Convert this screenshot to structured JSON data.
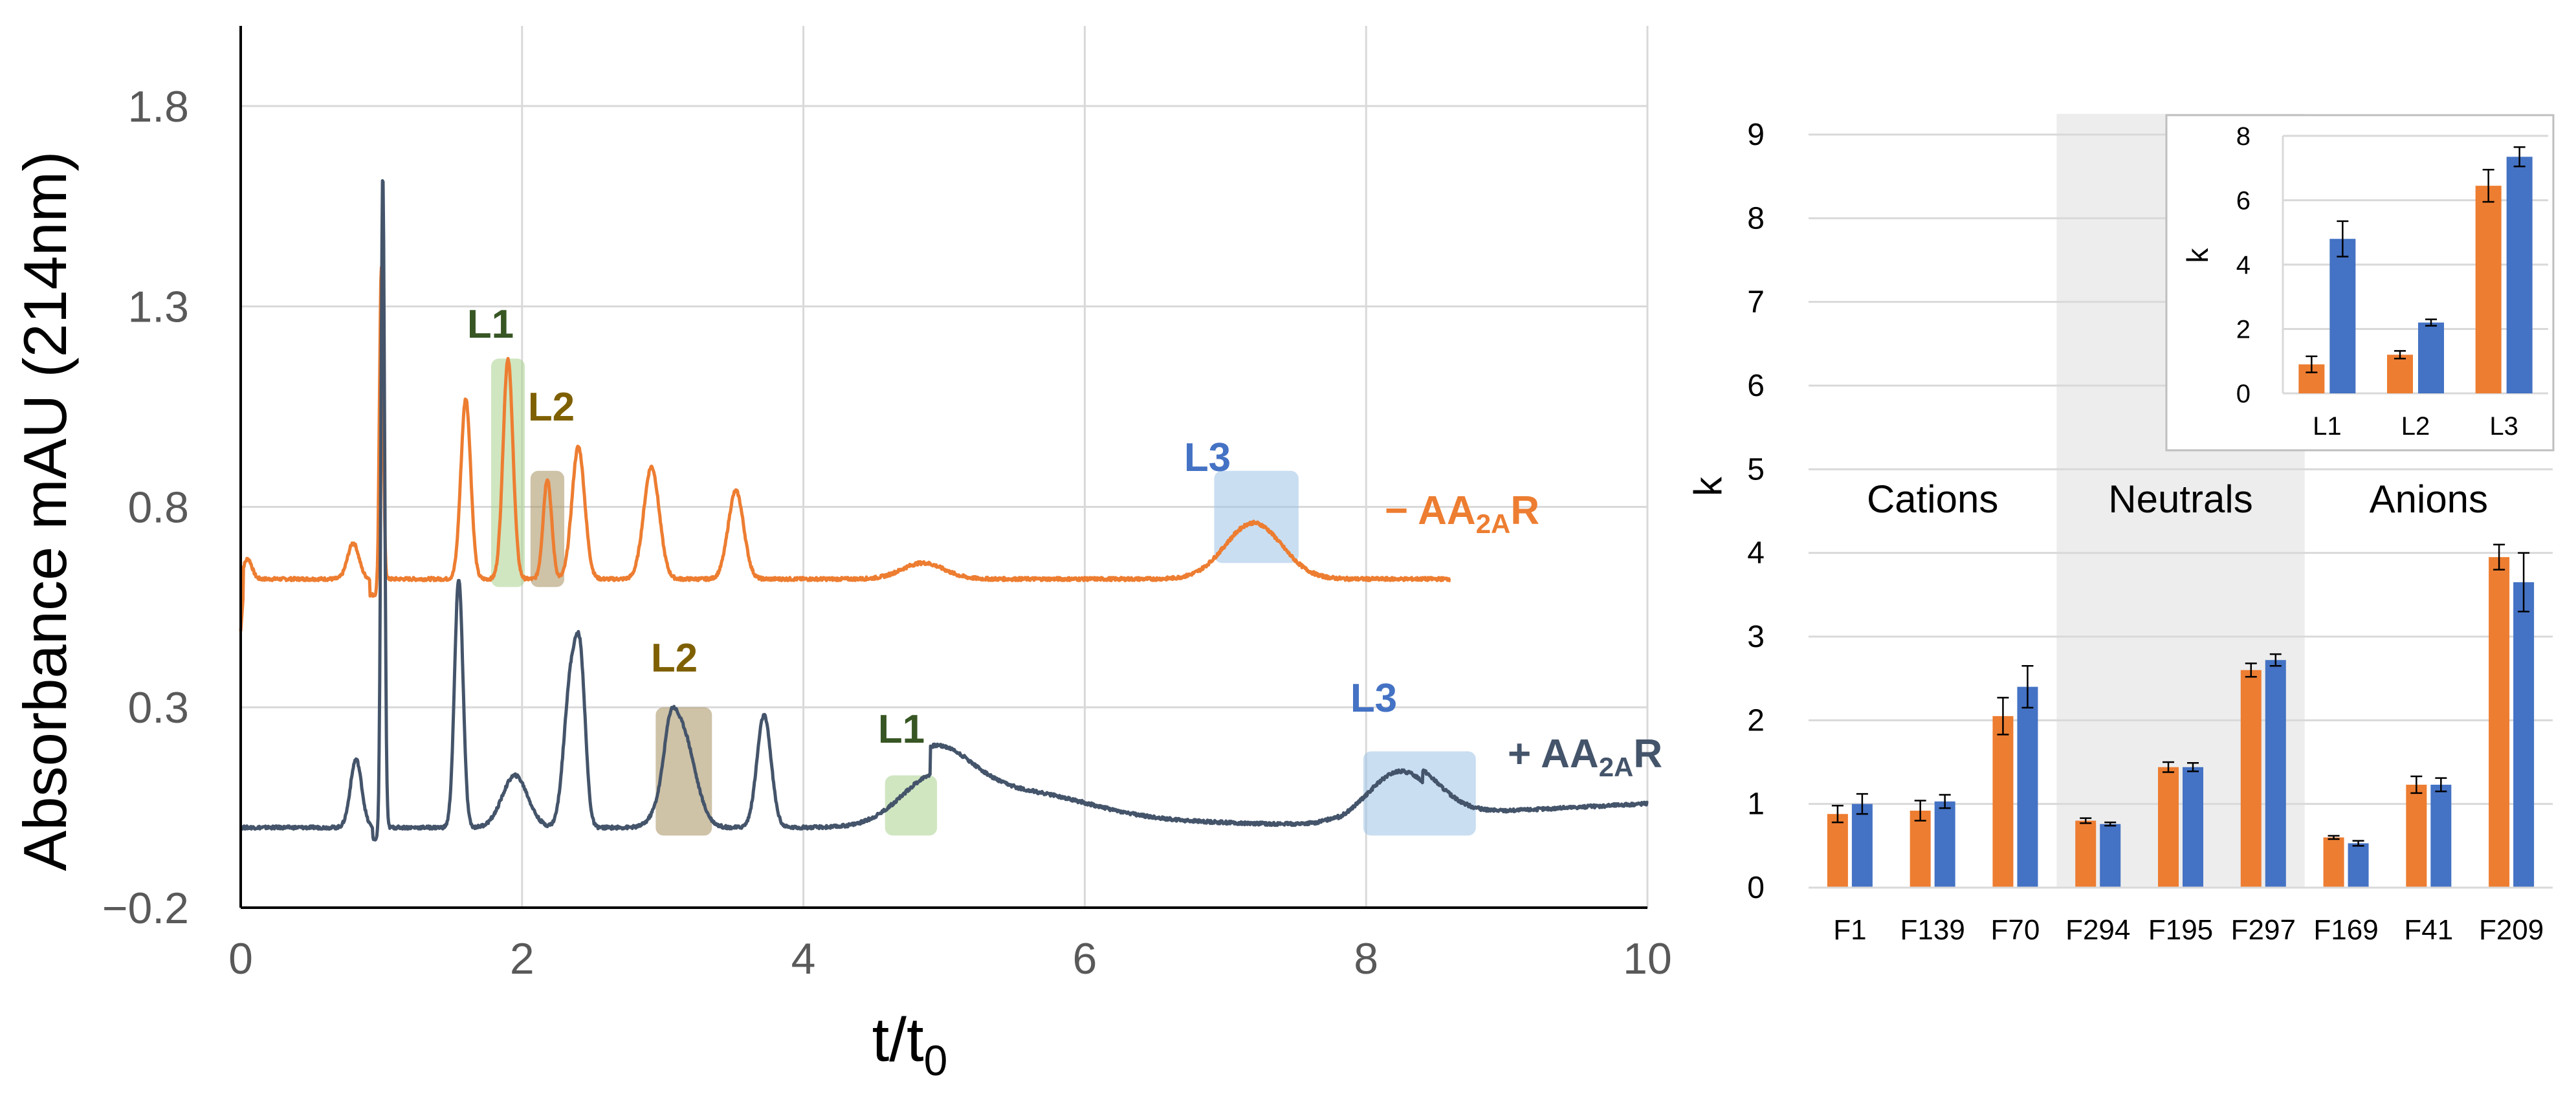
{
  "chart_data": [
    {
      "type": "line",
      "xlabel": "t/t",
      "xlabel_sub": "0",
      "ylabel": "Absorbance mAU (214nm)",
      "xlim": [
        0,
        10
      ],
      "ylim": [
        -0.2,
        2.0
      ],
      "x_ticks": [
        0,
        2,
        4,
        6,
        8,
        10
      ],
      "x_tick_labels": [
        "0",
        "2",
        "4",
        "6",
        "8",
        "10"
      ],
      "y_ticks": [
        -0.2,
        0.3,
        0.8,
        1.3,
        1.8
      ],
      "y_tick_labels": [
        "−0.2",
        "0.3",
        "0.8",
        "1.3",
        "1.8"
      ],
      "grid": true,
      "series": [
        {
          "name": "− AA",
          "name_sub": "2A",
          "name_end": "R",
          "color": "#ED7D31",
          "baseline": 0.62,
          "x_end": 8.6,
          "peaks": [
            {
              "x": 0.05,
              "h": 0.05,
              "w": 0.03
            },
            {
              "x": 0.8,
              "h": 0.09,
              "w": 0.04
            },
            {
              "x": 1.0,
              "h": 0.78,
              "w": 0.013
            },
            {
              "x": 1.6,
              "h": 0.45,
              "w": 0.035
            },
            {
              "x": 1.9,
              "h": 0.55,
              "w": 0.035
            },
            {
              "x": 2.18,
              "h": 0.25,
              "w": 0.03
            },
            {
              "x": 2.4,
              "h": 0.33,
              "w": 0.045
            },
            {
              "x": 2.92,
              "h": 0.28,
              "w": 0.055
            },
            {
              "x": 3.52,
              "h": 0.22,
              "w": 0.055
            },
            {
              "x": 4.85,
              "h": 0.04,
              "w": 0.15
            },
            {
              "x": 7.2,
              "h": 0.14,
              "w": 0.2
            }
          ]
        },
        {
          "name": "+ AA",
          "name_sub": "2A",
          "name_end": "R",
          "color": "#44546A",
          "baseline": 0.0,
          "x_end": 10.0,
          "peaks": [
            {
              "x": 0.82,
              "h": 0.17,
              "w": 0.04
            },
            {
              "x": 1.01,
              "h": 1.63,
              "w": 0.013
            },
            {
              "x": 1.55,
              "h": 0.62,
              "w": 0.03
            },
            {
              "x": 1.95,
              "h": 0.13,
              "w": 0.09
            },
            {
              "x": 2.35,
              "h": 0.38,
              "w": 0.05
            },
            {
              "x": 2.42,
              "h": 0.3,
              "w": 0.035
            },
            {
              "x": 3.12,
              "h": 0.26,
              "w": 0.1
            },
            {
              "x": 3.05,
              "h": 0.08,
              "w": 0.04
            },
            {
              "x": 3.72,
              "h": 0.28,
              "w": 0.05
            },
            {
              "x": 4.95,
              "h": 0.12,
              "w": 0.25
            },
            {
              "x": 5.6,
              "h": 0.05,
              "w": 0.45
            },
            {
              "x": 8.25,
              "h": 0.14,
              "w": 0.24
            }
          ],
          "tail_levels": [
            [
              7.8,
              0.03
            ],
            [
              10.0,
              0.06
            ]
          ]
        }
      ],
      "highlights": [
        {
          "label": "L1",
          "x0": 1.78,
          "x1": 2.02,
          "y0": 0.6,
          "y1": 1.17,
          "fill": "#A9D18E",
          "text_color": "#375623"
        },
        {
          "label": "L2",
          "x0": 2.06,
          "x1": 2.3,
          "y0": 0.6,
          "y1": 0.89,
          "fill": "#A68F5F",
          "text_color": "#7F6000"
        },
        {
          "label": "L3",
          "x0": 6.92,
          "x1": 7.52,
          "y0": 0.66,
          "y1": 0.89,
          "fill": "#9DC3E6",
          "text_color": "#4472C4"
        },
        {
          "label": "L2",
          "x0": 2.95,
          "x1": 3.35,
          "y0": -0.02,
          "y1": 0.3,
          "fill": "#A68F5F",
          "text_color": "#7F6000"
        },
        {
          "label": "L1",
          "x0": 4.58,
          "x1": 4.95,
          "y0": -0.02,
          "y1": 0.13,
          "fill": "#A9D18E",
          "text_color": "#375623"
        },
        {
          "label": "L3",
          "x0": 7.98,
          "x1": 8.78,
          "y0": -0.02,
          "y1": 0.19,
          "fill": "#9DC3E6",
          "text_color": "#4472C4"
        }
      ]
    },
    {
      "type": "bar",
      "ylabel": "k",
      "ylim": [
        0,
        9
      ],
      "y_ticks": [
        0,
        1,
        2,
        3,
        4,
        5,
        6,
        7,
        8,
        9
      ],
      "y_tick_labels": [
        "0",
        "1",
        "2",
        "3",
        "4",
        "5",
        "6",
        "7",
        "8",
        "9"
      ],
      "grid": true,
      "categories": [
        "F1",
        "F139",
        "F70",
        "F294",
        "F195",
        "F297",
        "F169",
        "F41",
        "F209"
      ],
      "groups": [
        {
          "label": "Cations",
          "start": 0,
          "end": 2
        },
        {
          "label": "Neutrals",
          "start": 3,
          "end": 5,
          "shaded": true
        },
        {
          "label": "Anions",
          "start": 6,
          "end": 8
        }
      ],
      "series": [
        {
          "color": "#ED7D31",
          "values": [
            0.88,
            0.92,
            2.05,
            0.8,
            1.44,
            2.6,
            0.6,
            1.23,
            3.95
          ],
          "errors": [
            0.1,
            0.12,
            0.22,
            0.03,
            0.06,
            0.08,
            0.02,
            0.1,
            0.15
          ]
        },
        {
          "color": "#4472C4",
          "values": [
            1.0,
            1.03,
            2.4,
            0.76,
            1.44,
            2.72,
            0.53,
            1.23,
            3.65
          ],
          "errors": [
            0.12,
            0.08,
            0.25,
            0.02,
            0.05,
            0.07,
            0.03,
            0.08,
            0.35
          ]
        }
      ]
    },
    {
      "type": "bar",
      "ylabel": "k",
      "ylim": [
        0,
        8
      ],
      "y_ticks": [
        0,
        2,
        4,
        6,
        8
      ],
      "y_tick_labels": [
        "0",
        "2",
        "4",
        "6",
        "8"
      ],
      "grid": true,
      "categories": [
        "L1",
        "L2",
        "L3"
      ],
      "series": [
        {
          "color": "#ED7D31",
          "values": [
            0.9,
            1.2,
            6.45
          ],
          "errors": [
            0.25,
            0.12,
            0.5
          ]
        },
        {
          "color": "#4472C4",
          "values": [
            4.8,
            2.2,
            7.35
          ],
          "errors": [
            0.55,
            0.1,
            0.3
          ]
        }
      ]
    }
  ]
}
